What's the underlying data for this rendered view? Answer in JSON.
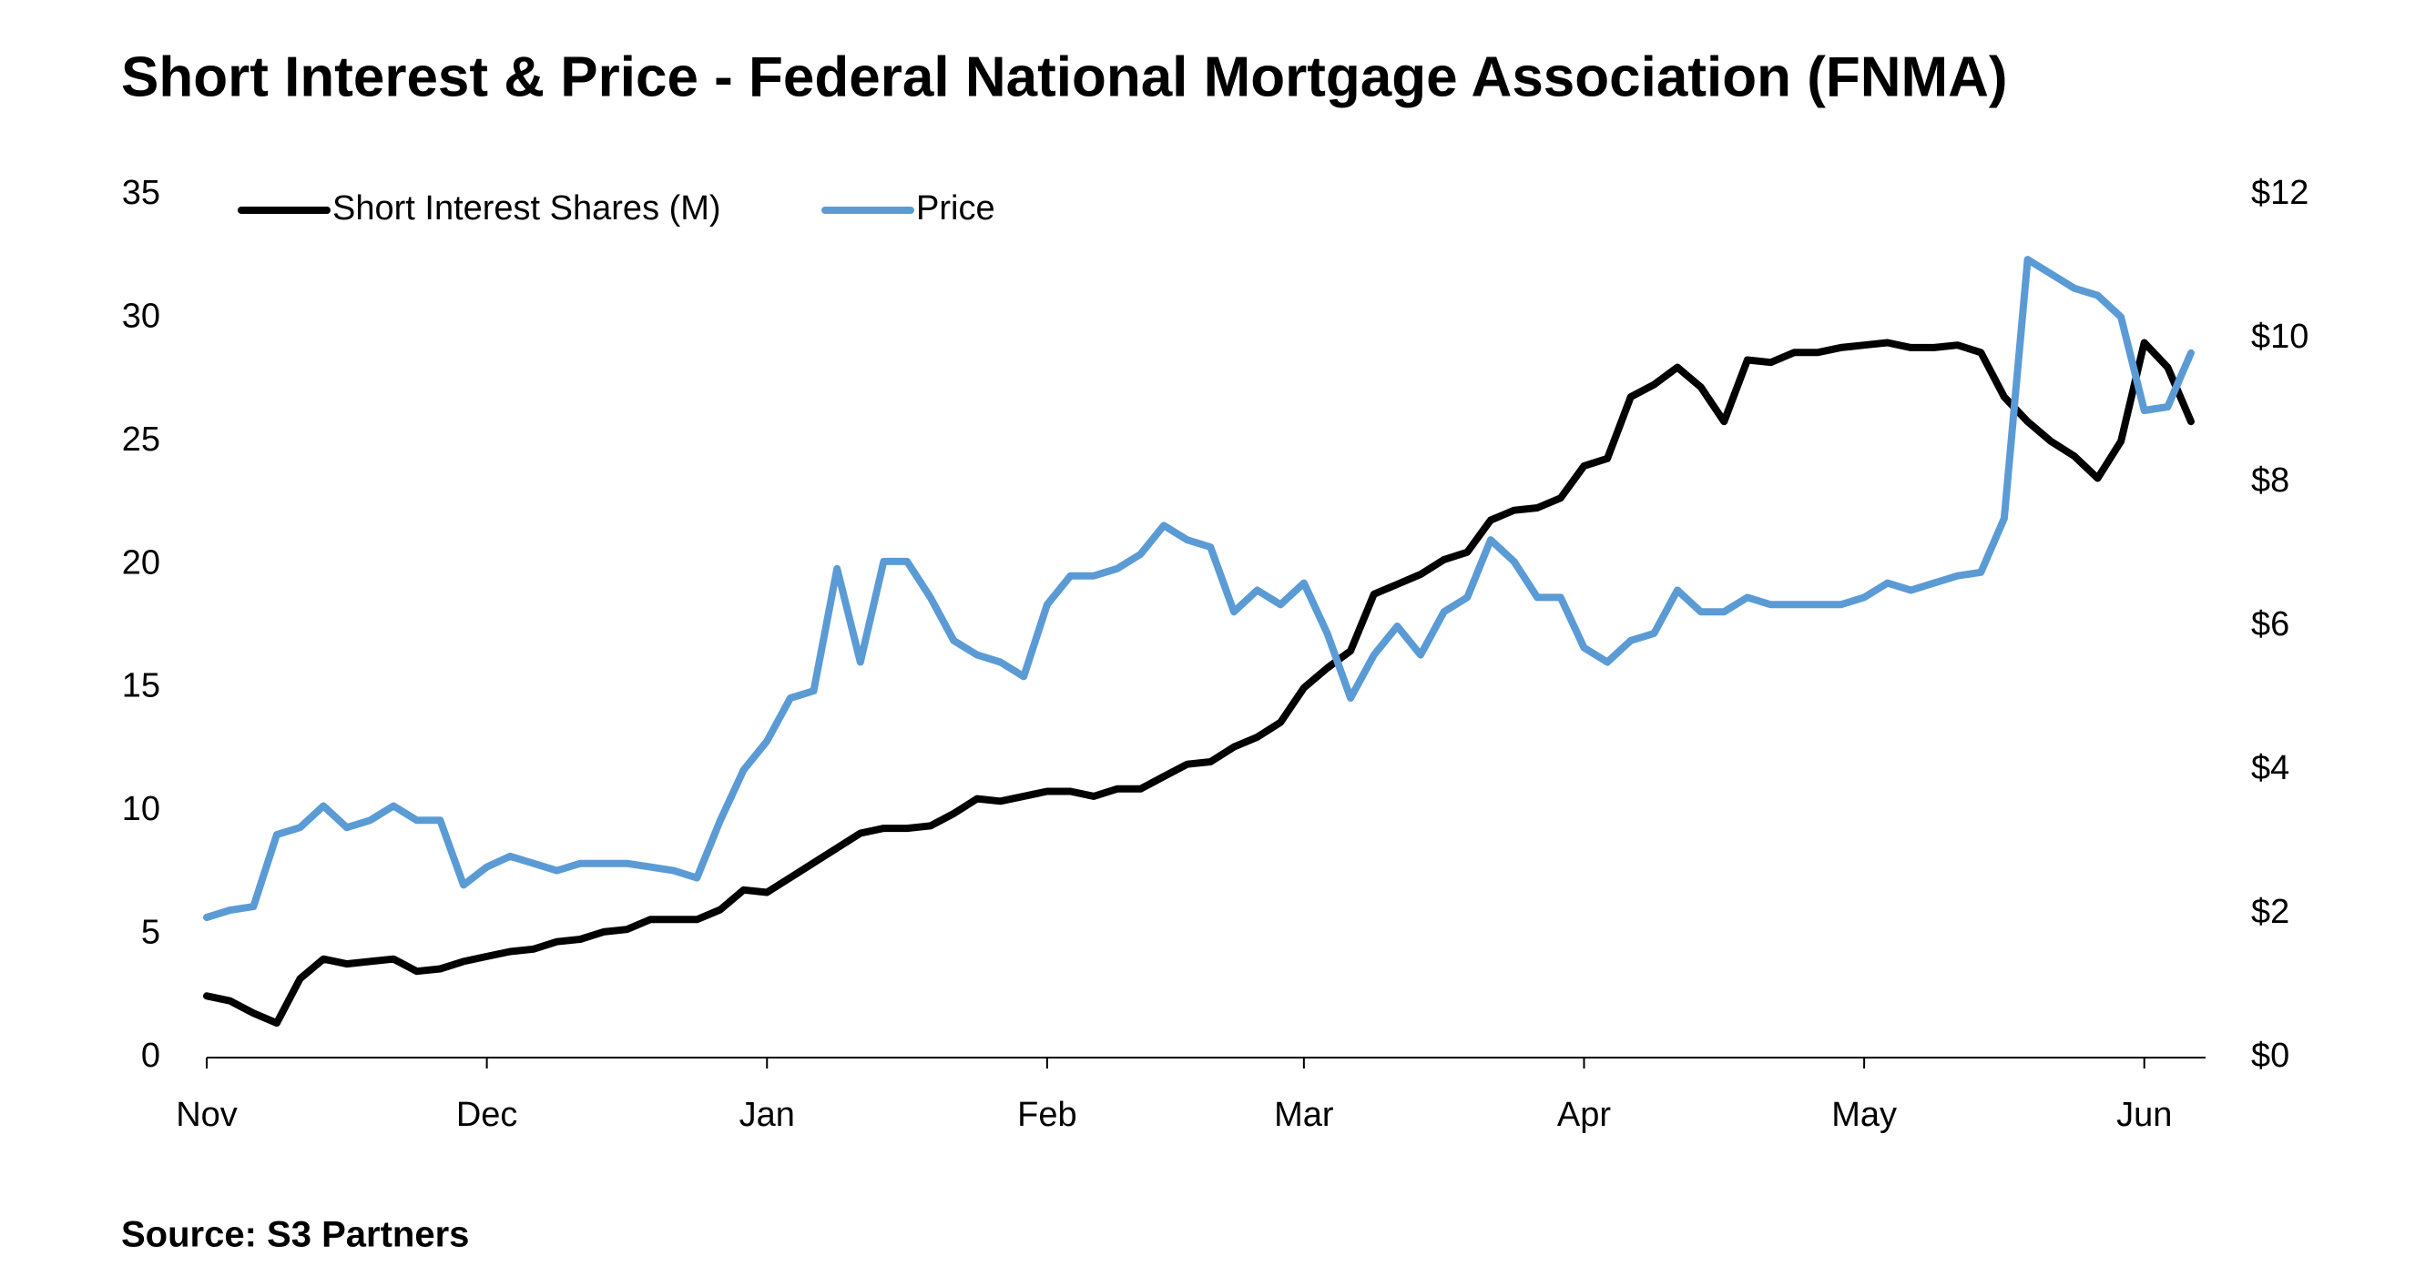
{
  "chart_data": {
    "type": "line",
    "title": "Short Interest & Price - Federal National Mortgage Association (FNMA)",
    "source": "Source: S3 Partners",
    "categories": [
      "Nov",
      null,
      null,
      null,
      null,
      null,
      null,
      null,
      null,
      null,
      null,
      null,
      "Dec",
      null,
      null,
      null,
      null,
      null,
      null,
      null,
      null,
      null,
      null,
      null,
      "Jan",
      null,
      null,
      null,
      null,
      null,
      null,
      null,
      null,
      null,
      null,
      null,
      "Feb",
      null,
      null,
      null,
      null,
      null,
      null,
      null,
      null,
      null,
      null,
      "Mar",
      null,
      null,
      null,
      null,
      null,
      null,
      null,
      null,
      null,
      null,
      null,
      "Apr",
      null,
      null,
      null,
      null,
      null,
      null,
      null,
      null,
      null,
      null,
      null,
      "May",
      null,
      null,
      null,
      null,
      null,
      null,
      null,
      null,
      null,
      null,
      null,
      "Jun",
      null,
      null
    ],
    "series": [
      {
        "name": "Short Interest Shares (M)",
        "color": "#000000",
        "axis": "y",
        "values": [
          2.5,
          2.3,
          1.8,
          1.4,
          3.2,
          4.0,
          3.8,
          3.9,
          4.0,
          3.5,
          3.6,
          3.9,
          4.1,
          4.3,
          4.4,
          4.7,
          4.8,
          5.1,
          5.2,
          5.6,
          5.6,
          5.6,
          6.0,
          6.8,
          6.7,
          7.3,
          7.9,
          8.5,
          9.1,
          9.3,
          9.3,
          9.4,
          9.9,
          10.5,
          10.4,
          10.6,
          10.8,
          10.8,
          10.6,
          10.9,
          10.9,
          11.4,
          11.9,
          12.0,
          12.6,
          13.0,
          13.6,
          15.0,
          15.8,
          16.5,
          18.8,
          19.2,
          19.6,
          20.2,
          20.5,
          21.8,
          22.2,
          22.3,
          22.7,
          24.0,
          24.3,
          26.8,
          27.3,
          28.0,
          27.2,
          25.8,
          28.3,
          28.2,
          28.6,
          28.6,
          28.8,
          28.9,
          29.0,
          28.8,
          28.8,
          28.9,
          28.6,
          26.8,
          25.8,
          25.0,
          24.4,
          23.5,
          25.0,
          29.0,
          28.0,
          25.8
        ]
      },
      {
        "name": "Price",
        "color": "#5b9bd5",
        "axis": "y2",
        "values": [
          1.95,
          2.05,
          2.1,
          3.1,
          3.2,
          3.5,
          3.2,
          3.3,
          3.5,
          3.3,
          3.3,
          2.4,
          2.65,
          2.8,
          2.7,
          2.6,
          2.7,
          2.7,
          2.7,
          2.65,
          2.6,
          2.5,
          3.3,
          4.0,
          4.4,
          5.0,
          5.1,
          6.8,
          5.5,
          6.9,
          6.9,
          6.4,
          5.8,
          5.6,
          5.5,
          5.3,
          6.3,
          6.7,
          6.7,
          6.8,
          7.0,
          7.4,
          7.2,
          7.1,
          6.2,
          6.5,
          6.3,
          6.6,
          5.9,
          5.0,
          5.6,
          6.0,
          5.6,
          6.2,
          6.4,
          7.2,
          6.9,
          6.4,
          6.4,
          5.7,
          5.5,
          5.8,
          5.9,
          6.5,
          6.2,
          6.2,
          6.4,
          6.3,
          6.3,
          6.3,
          6.3,
          6.4,
          6.6,
          6.5,
          6.6,
          6.7,
          6.75,
          7.5,
          11.1,
          10.9,
          10.7,
          10.6,
          10.3,
          9.0,
          9.05,
          9.8
        ]
      }
    ],
    "ylim": [
      0,
      35
    ],
    "yticks": [
      0,
      5,
      10,
      15,
      20,
      25,
      30,
      35
    ],
    "y2lim": [
      0,
      12
    ],
    "y2ticks": [
      {
        "value": 0,
        "label": "$0"
      },
      {
        "value": 2,
        "label": "$2"
      },
      {
        "value": 4,
        "label": "$4"
      },
      {
        "value": 6,
        "label": "$6"
      },
      {
        "value": 8,
        "label": "$8"
      },
      {
        "value": 10,
        "label": "$10"
      },
      {
        "value": 12,
        "label": "$12"
      }
    ],
    "legend": "top-left",
    "grid": false
  }
}
